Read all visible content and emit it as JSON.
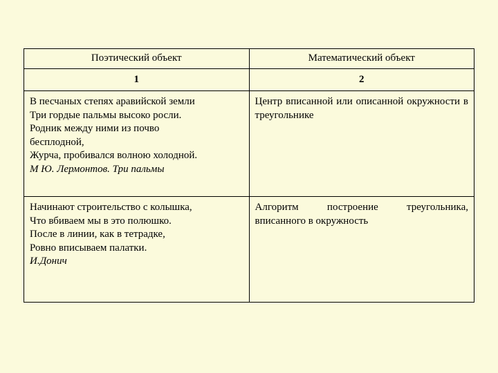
{
  "background_color": "#fbfadc",
  "table": {
    "border_color": "#000000",
    "header": {
      "col1": "Поэтический объект",
      "col2": "Математический объект"
    },
    "subheader": {
      "col1": "1",
      "col2": "2"
    },
    "rows": [
      {
        "poem_l1": "В песчаных степях аравийской земли",
        "poem_l2": "Три гордые пальмы высоко росли.",
        "poem_l3": "Родник между ними из почво",
        "poem_l4": "бесплодной,",
        "poem_l5": " Журча, пробивался волною холодной.",
        "poem_author": " М Ю. Лермонтов. Три пальмы",
        "math": "Центр вписанной или описанной окружности в треугольнике"
      },
      {
        "poem_l1": "Начинают строительство с колышка,",
        "poem_l2": " Что вбиваем мы в это полюшко.",
        "poem_l3": "После в линии, как в тетрадке,",
        "poem_l4": "Ровно вписываем палатки.",
        "poem_author": "И.Донич",
        "math": "Алгоритм построение треугольника, вписанного в окружность"
      }
    ]
  }
}
